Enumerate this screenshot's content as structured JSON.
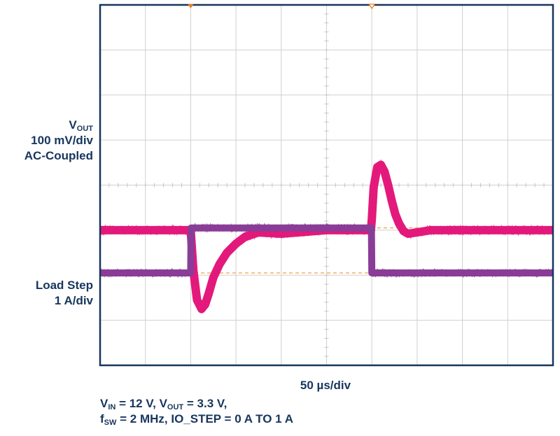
{
  "chart_data": {
    "type": "line",
    "title": "",
    "xlabel": "50 µs/div",
    "x_unit": "µs",
    "x_per_div": 50,
    "x_divisions": 10,
    "xlim": [
      0,
      500
    ],
    "grid": true,
    "legend": "none",
    "series": [
      {
        "name": "VOUT",
        "channel_label": {
          "main": "V",
          "sub": "OUT",
          "line2": "100 mV/div",
          "line3": "AC-Coupled"
        },
        "unit": "mV",
        "per_div": 100,
        "color": "#e3197b",
        "ylim": [
          -300,
          500
        ],
        "x": [
          0,
          100,
          101,
          103,
          107,
          112,
          116,
          120,
          125,
          132,
          140,
          150,
          160,
          175,
          200,
          250,
          299,
          300,
          302,
          306,
          310,
          314,
          318,
          322,
          326,
          330,
          335,
          340,
          350,
          365,
          380,
          400,
          450,
          500
        ],
        "y": [
          0,
          0,
          -30,
          -90,
          -155,
          -175,
          -165,
          -140,
          -105,
          -75,
          -50,
          -30,
          -15,
          -5,
          -8,
          0,
          0,
          25,
          95,
          140,
          145,
          130,
          100,
          65,
          35,
          15,
          -2,
          -8,
          -5,
          0,
          0,
          0,
          0,
          0
        ]
      },
      {
        "name": "Load Step",
        "channel_label": {
          "line1": "Load Step",
          "line2": "1 A/div"
        },
        "unit": "A",
        "per_div": 1,
        "color": "#8a3d97",
        "ylim": [
          -7,
          1
        ],
        "x": [
          0,
          100,
          100.5,
          299.5,
          300,
          500
        ],
        "y": [
          -4.95,
          -4.95,
          -3.95,
          -3.95,
          -4.95,
          -4.95
        ]
      }
    ],
    "annotations": {
      "line1": [
        {
          "s": "V"
        },
        {
          "s": "IN",
          "sub": true
        },
        {
          "s": " = 12 V, V"
        },
        {
          "s": "OUT",
          "sub": true
        },
        {
          "s": " = 3.3 V,"
        }
      ],
      "line2": [
        {
          "s": "f"
        },
        {
          "s": "SW",
          "sub": true
        },
        {
          "s": " = 2 MHz, IO_STEP = 0 A TO 1 A"
        }
      ]
    }
  },
  "colors": {
    "frame": "#17365d",
    "grid": "#d0d0d0",
    "ref_dash": "#f0a040",
    "ref_marker": "#e87d1e",
    "label_text": "#17365d"
  }
}
